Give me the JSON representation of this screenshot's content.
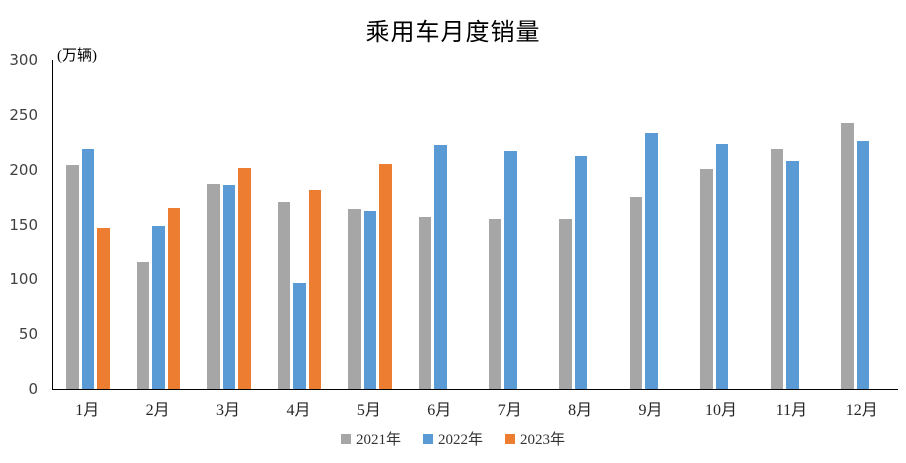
{
  "chart_data": {
    "type": "bar",
    "title": "乘用车月度销量",
    "unit_label": "(万辆)",
    "categories": [
      "1月",
      "2月",
      "3月",
      "4月",
      "5月",
      "6月",
      "7月",
      "8月",
      "9月",
      "10月",
      "11月",
      "12月"
    ],
    "series": [
      {
        "name": "2021年",
        "color": "#A6A6A6",
        "values": [
          204.5,
          115.6,
          187.4,
          170.4,
          164.6,
          156.9,
          155.1,
          155.2,
          175.1,
          200.7,
          219.2,
          242.2
        ]
      },
      {
        "name": "2022年",
        "color": "#5B9BD5",
        "values": [
          218.6,
          148.7,
          186.4,
          96.5,
          162.3,
          222.2,
          217.4,
          212.5,
          233.2,
          223.1,
          207.5,
          226.3
        ]
      },
      {
        "name": "2023年",
        "color": "#ED7D31",
        "values": [
          146.9,
          165.3,
          201.7,
          181.1,
          205.1,
          null,
          null,
          null,
          null,
          null,
          null,
          null
        ]
      }
    ],
    "ylim": [
      0,
      300
    ],
    "yticks": [
      0,
      50,
      100,
      150,
      200,
      250,
      300
    ],
    "grid": false,
    "legend_position": "bottom",
    "axis_color": "#000000",
    "background_color": "#FFFFFF"
  }
}
